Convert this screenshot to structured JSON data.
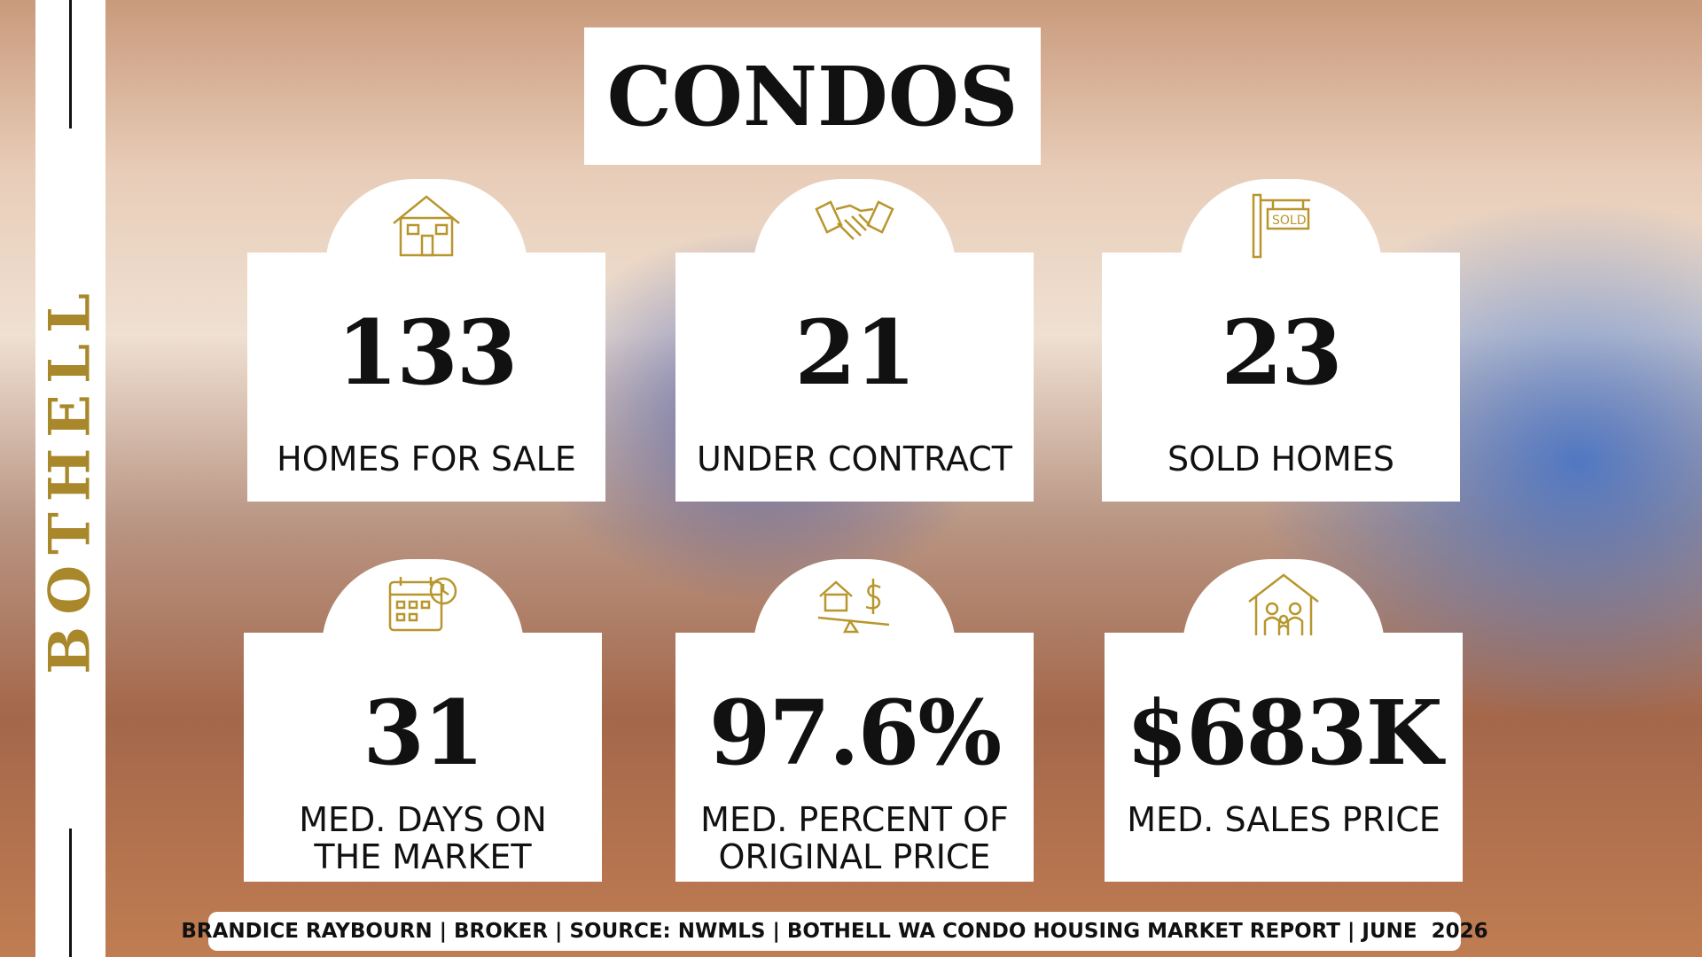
{
  "side_label": "BOTHELL",
  "title": "CONDOS",
  "stats": [
    {
      "value": "133",
      "label": "HOMES FOR SALE"
    },
    {
      "value": "21",
      "label": "UNDER CONTRACT"
    },
    {
      "value": "23",
      "label": "SOLD HOMES"
    },
    {
      "value": "31",
      "label": "MED. DAYS ON\nTHE MARKET"
    },
    {
      "value": "97.6%",
      "label": "MED. PERCENT OF\nORIGINAL PRICE"
    },
    {
      "value": "$683K",
      "label": "MED. SALES PRICE"
    }
  ],
  "sold_sign": "SOLD",
  "footer": "BRANDICE RAYBOURN | BROKER | SOURCE: NWMLS | BOTHELL WA CONDO HOUSING MARKET REPORT | JUNE  2026"
}
